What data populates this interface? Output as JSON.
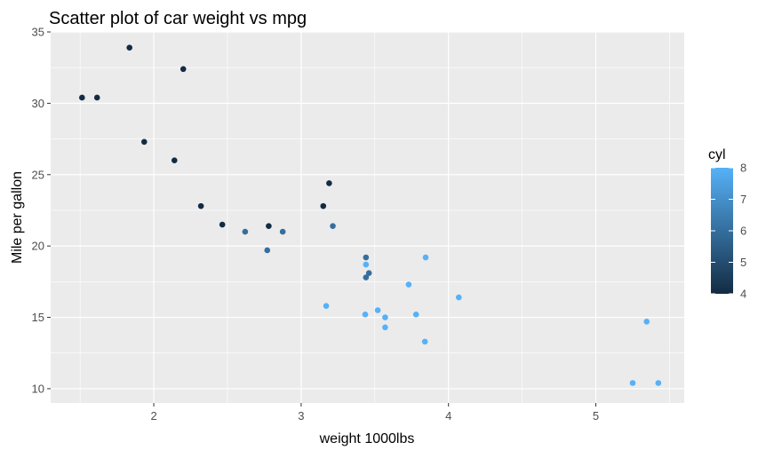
{
  "chart_data": {
    "type": "scatter",
    "title": "Scatter plot of car weight vs mpg",
    "xlabel": "weight 1000lbs",
    "ylabel": "Mile per gallon",
    "xlim": [
      1.3,
      5.6
    ],
    "ylim": [
      9.0,
      35.0
    ],
    "xticks": [
      2,
      3,
      4,
      5
    ],
    "yticks": [
      10,
      15,
      20,
      25,
      30,
      35
    ],
    "grid": true,
    "legend": {
      "title": "cyl",
      "position": "right",
      "type": "colorbar",
      "ticks": [
        4,
        5,
        6,
        7,
        8
      ],
      "low_color": "#132B43",
      "high_color": "#56B1F7"
    },
    "points": [
      {
        "x": 2.62,
        "y": 21.0,
        "cyl": 6
      },
      {
        "x": 2.875,
        "y": 21.0,
        "cyl": 6
      },
      {
        "x": 2.32,
        "y": 22.8,
        "cyl": 4
      },
      {
        "x": 3.215,
        "y": 21.4,
        "cyl": 6
      },
      {
        "x": 3.44,
        "y": 18.7,
        "cyl": 8
      },
      {
        "x": 3.46,
        "y": 18.1,
        "cyl": 6
      },
      {
        "x": 3.57,
        "y": 14.3,
        "cyl": 8
      },
      {
        "x": 3.19,
        "y": 24.4,
        "cyl": 4
      },
      {
        "x": 3.15,
        "y": 22.8,
        "cyl": 4
      },
      {
        "x": 3.44,
        "y": 19.2,
        "cyl": 6
      },
      {
        "x": 3.44,
        "y": 17.8,
        "cyl": 6
      },
      {
        "x": 4.07,
        "y": 16.4,
        "cyl": 8
      },
      {
        "x": 3.73,
        "y": 17.3,
        "cyl": 8
      },
      {
        "x": 3.78,
        "y": 15.2,
        "cyl": 8
      },
      {
        "x": 5.25,
        "y": 10.4,
        "cyl": 8
      },
      {
        "x": 5.424,
        "y": 10.4,
        "cyl": 8
      },
      {
        "x": 5.345,
        "y": 14.7,
        "cyl": 8
      },
      {
        "x": 2.2,
        "y": 32.4,
        "cyl": 4
      },
      {
        "x": 1.615,
        "y": 30.4,
        "cyl": 4
      },
      {
        "x": 1.835,
        "y": 33.9,
        "cyl": 4
      },
      {
        "x": 2.465,
        "y": 21.5,
        "cyl": 4
      },
      {
        "x": 3.52,
        "y": 15.5,
        "cyl": 8
      },
      {
        "x": 3.435,
        "y": 15.2,
        "cyl": 8
      },
      {
        "x": 3.84,
        "y": 13.3,
        "cyl": 8
      },
      {
        "x": 3.845,
        "y": 19.2,
        "cyl": 8
      },
      {
        "x": 1.935,
        "y": 27.3,
        "cyl": 4
      },
      {
        "x": 2.14,
        "y": 26.0,
        "cyl": 4
      },
      {
        "x": 1.513,
        "y": 30.4,
        "cyl": 4
      },
      {
        "x": 3.17,
        "y": 15.8,
        "cyl": 8
      },
      {
        "x": 2.77,
        "y": 19.7,
        "cyl": 6
      },
      {
        "x": 3.57,
        "y": 15.0,
        "cyl": 8
      },
      {
        "x": 2.78,
        "y": 21.4,
        "cyl": 4
      }
    ]
  }
}
